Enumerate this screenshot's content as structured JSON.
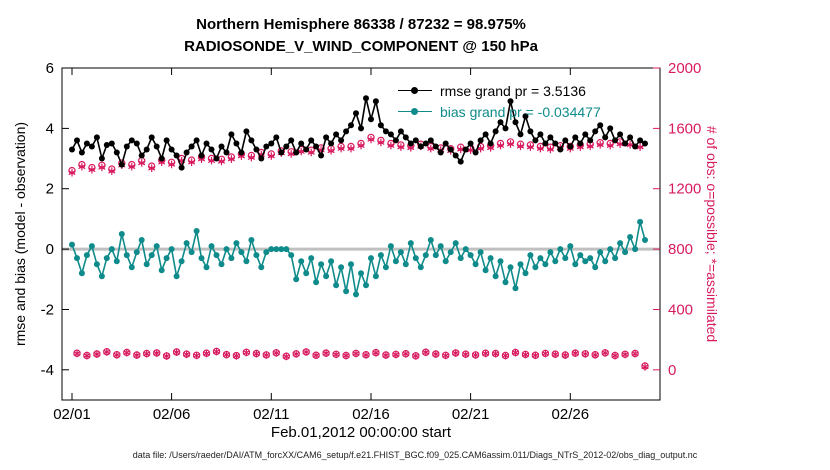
{
  "footer_note": "data file: /Users/raeder/DAI/ATM_forcXX/CAM6_setup/f.e21.FHIST_BGC.f09_025.CAM6assim.011/Diags_NTrS_2012-02/obs_diag_output.nc",
  "colors": {
    "rmse": "#000000",
    "bias": "#0f8b8b",
    "obs": "#d81b60",
    "zero_line": "#c0c0c0"
  },
  "chart_data": {
    "type": "line",
    "title": "Northern Hemisphere 86338 / 87232 = 98.975%",
    "subtitle": "RADIOSONDE_V_WIND_COMPONENT @ 150 hPa",
    "xlabel": "Feb.01,2012 00:00:00 start",
    "ylabel_left": "rmse and bias (model - observation)",
    "ylabel_right": "# of obs: o=possible; *=assimilated",
    "legend": [
      "rmse grand pr = 3.5136",
      "bias grand pr = -0.034477"
    ],
    "legend_position": "upper-right-inside",
    "grid": false,
    "stats": {
      "rmse_grand_mean": 3.5136,
      "bias_grand_mean": -0.034477,
      "obs_assimilated_total": 86338,
      "obs_possible_total": 87232,
      "pct_assimilated": 98.975
    },
    "x_axis": {
      "domain_days": [
        -0.5,
        29.5
      ],
      "ticks_days": [
        0,
        5,
        10,
        15,
        20,
        25
      ],
      "tick_labels": [
        "02/01",
        "02/06",
        "02/11",
        "02/16",
        "02/21",
        "02/26"
      ]
    },
    "y_axis_left": {
      "domain": [
        -5,
        6
      ],
      "ticks": [
        -4,
        -2,
        0,
        2,
        4,
        6
      ]
    },
    "y_axis_right": {
      "domain": [
        -200,
        2000
      ],
      "ticks": [
        0,
        400,
        800,
        1200,
        1600,
        2000
      ]
    },
    "x_start_day": 0,
    "x_step_days": 0.25,
    "series": [
      {
        "name": "obs-possible",
        "axis": "right",
        "marker": "circle",
        "line": false,
        "color_key": "obs",
        "values": [
          1320,
          110,
          1360,
          95,
          1340,
          105,
          1355,
          120,
          1330,
          100,
          1370,
          115,
          1360,
          98,
          1385,
          108,
          1350,
          112,
          1390,
          92,
          1375,
          118,
          1400,
          104,
          1390,
          96,
          1410,
          110,
          1400,
          122,
          1395,
          101,
          1410,
          94,
          1430,
          116,
          1420,
          108,
          1440,
          99,
          1430,
          113,
          1450,
          90,
          1445,
          106,
          1460,
          119,
          1455,
          97,
          1470,
          111,
          1465,
          103,
          1480,
          95,
          1480,
          109,
          1500,
          100,
          1540,
          114,
          1520,
          98,
          1500,
          102,
          1490,
          107,
          1485,
          93,
          1495,
          117,
          1480,
          105,
          1470,
          96,
          1465,
          112,
          1475,
          104,
          1470,
          99,
          1480,
          110,
          1485,
          108,
          1500,
          95,
          1510,
          115,
          1495,
          102,
          1490,
          97,
          1480,
          109,
          1475,
          104,
          1485,
          98,
          1480,
          111,
          1490,
          106,
          1495,
          100,
          1505,
          113,
          1500,
          95,
          1510,
          103,
          1505,
          108,
          1490,
          25
        ]
      },
      {
        "name": "obs-assimilated",
        "axis": "right",
        "marker": "asterisk",
        "line": false,
        "color_key": "obs",
        "values": [
          1306,
          109,
          1346,
          94,
          1326,
          104,
          1341,
          119,
          1316,
          99,
          1356,
          114,
          1346,
          97,
          1371,
          107,
          1336,
          111,
          1376,
          91,
          1361,
          117,
          1386,
          103,
          1376,
          95,
          1396,
          109,
          1386,
          121,
          1381,
          100,
          1396,
          93,
          1416,
          115,
          1406,
          107,
          1426,
          98,
          1416,
          112,
          1436,
          89,
          1431,
          105,
          1446,
          118,
          1441,
          96,
          1456,
          110,
          1451,
          102,
          1466,
          94,
          1466,
          108,
          1486,
          99,
          1526,
          113,
          1506,
          97,
          1486,
          101,
          1476,
          106,
          1471,
          92,
          1481,
          116,
          1466,
          104,
          1456,
          95,
          1451,
          111,
          1461,
          103,
          1456,
          98,
          1466,
          109,
          1471,
          107,
          1486,
          94,
          1496,
          114,
          1481,
          101,
          1476,
          96,
          1466,
          108,
          1461,
          103,
          1471,
          97,
          1466,
          110,
          1476,
          105,
          1481,
          99,
          1491,
          112,
          1486,
          94,
          1496,
          102,
          1491,
          107,
          1476,
          20
        ]
      },
      {
        "name": "bias",
        "axis": "left",
        "marker": "dot",
        "line": true,
        "color_key": "bias",
        "values": [
          0.15,
          -0.3,
          -0.8,
          -0.2,
          0.1,
          -0.5,
          -0.9,
          -0.3,
          0.0,
          -0.4,
          0.5,
          -0.2,
          -0.6,
          -0.1,
          0.3,
          -0.5,
          -0.2,
          0.1,
          -0.7,
          -0.3,
          0.0,
          -0.9,
          -0.4,
          0.2,
          -0.1,
          0.6,
          -0.3,
          -0.6,
          0.1,
          -0.2,
          -0.5,
          0.0,
          -0.3,
          0.2,
          -0.1,
          -0.4,
          0.3,
          -0.2,
          -0.6,
          -0.1,
          0.0,
          0.0,
          0.0,
          0.0,
          -0.2,
          -1.0,
          -0.4,
          -0.8,
          -0.3,
          -1.1,
          -0.5,
          -0.9,
          -0.4,
          -1.2,
          -0.6,
          -1.4,
          -0.5,
          -1.5,
          -0.8,
          -1.2,
          -0.3,
          -0.9,
          -0.2,
          -0.6,
          0.1,
          -0.4,
          -0.1,
          -0.5,
          0.2,
          -0.3,
          -0.6,
          -0.2,
          0.3,
          -0.2,
          0.1,
          -0.4,
          -0.1,
          0.2,
          -0.3,
          0.0,
          -0.2,
          -0.5,
          -0.1,
          -0.7,
          -0.3,
          -0.9,
          -0.4,
          -1.1,
          -0.6,
          -1.3,
          -0.5,
          -0.8,
          -0.2,
          -0.6,
          -0.3,
          -0.5,
          -0.1,
          -0.4,
          0.0,
          -0.3,
          0.1,
          -0.5,
          -0.2,
          -0.4,
          -0.3,
          -0.6,
          -0.1,
          -0.4,
          0.0,
          -0.3,
          0.2,
          -0.1,
          0.4,
          0.0,
          0.9,
          0.3
        ]
      },
      {
        "name": "rmse",
        "axis": "left",
        "marker": "dot",
        "line": true,
        "color_key": "rmse",
        "values": [
          3.3,
          3.6,
          3.2,
          3.5,
          3.4,
          3.7,
          3.0,
          3.45,
          3.5,
          3.2,
          2.8,
          3.4,
          3.6,
          3.5,
          3.1,
          3.3,
          3.7,
          3.4,
          3.0,
          3.6,
          3.3,
          3.1,
          2.7,
          3.2,
          3.4,
          3.6,
          3.1,
          3.5,
          3.3,
          3.0,
          3.4,
          3.2,
          3.8,
          3.5,
          3.2,
          3.9,
          3.6,
          3.3,
          3.0,
          3.4,
          3.5,
          3.7,
          3.2,
          3.4,
          3.6,
          3.2,
          3.5,
          3.3,
          3.6,
          3.4,
          3.1,
          3.7,
          3.5,
          3.8,
          3.6,
          3.9,
          4.1,
          4.5,
          4.0,
          5.0,
          4.3,
          4.9,
          4.1,
          3.9,
          3.8,
          3.6,
          3.9,
          3.7,
          3.5,
          3.6,
          3.4,
          3.5,
          3.6,
          3.4,
          3.2,
          3.5,
          3.3,
          3.1,
          2.9,
          3.3,
          3.5,
          3.2,
          3.6,
          3.8,
          3.5,
          3.9,
          4.2,
          4.0,
          4.9,
          4.2,
          3.8,
          4.4,
          3.9,
          3.6,
          3.8,
          3.5,
          3.7,
          3.5,
          3.3,
          3.6,
          3.4,
          3.7,
          3.5,
          3.8,
          3.6,
          3.9,
          4.1,
          3.7,
          4.0,
          3.6,
          3.8,
          3.5,
          3.7,
          3.4,
          3.6,
          3.5
        ]
      }
    ]
  }
}
